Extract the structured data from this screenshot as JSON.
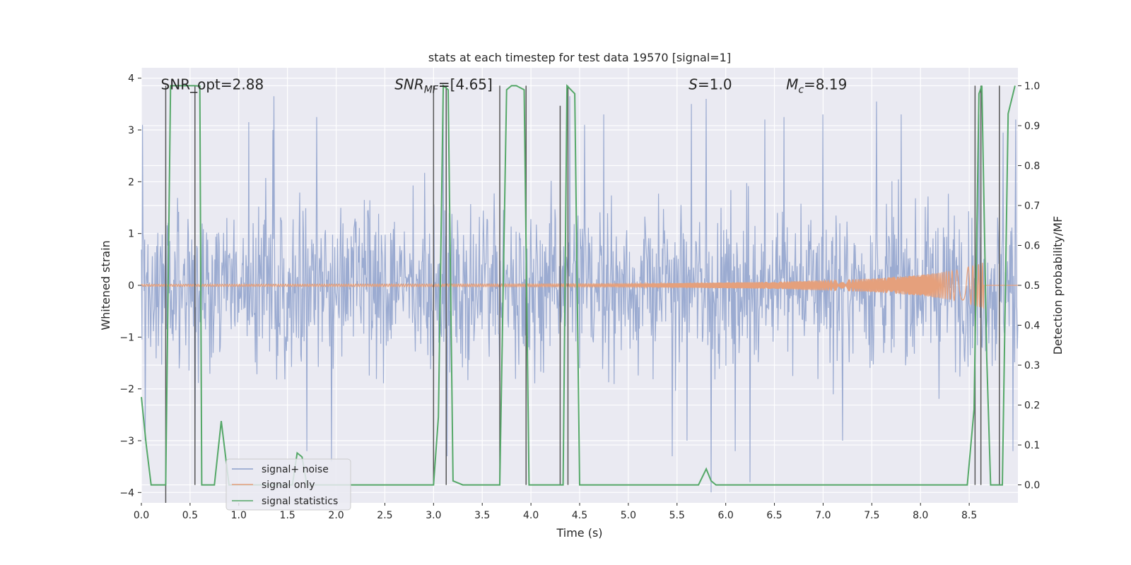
{
  "chart_data": {
    "type": "line",
    "title": "stats at each timestep for test data 19570 [signal=1]",
    "xlabel": "Time (s)",
    "ylabel": "Whitened strain",
    "y2label": "Detection probability/MF",
    "xlim": [
      0.0,
      9.0
    ],
    "ylim": [
      -4.2,
      4.2
    ],
    "y2lim": [
      -0.045,
      1.045
    ],
    "xticks": [
      "0.0",
      "0.5",
      "1.0",
      "1.5",
      "2.0",
      "2.5",
      "3.0",
      "3.5",
      "4.0",
      "4.5",
      "5.0",
      "5.5",
      "6.0",
      "6.5",
      "7.0",
      "7.5",
      "8.0",
      "8.5"
    ],
    "yticks": [
      "−4",
      "−3",
      "−2",
      "−1",
      "0",
      "1",
      "2",
      "3",
      "4"
    ],
    "y2ticks": [
      "0.0",
      "0.1",
      "0.2",
      "0.3",
      "0.4",
      "0.5",
      "0.6",
      "0.7",
      "0.8",
      "0.9",
      "1.0"
    ],
    "grid": true,
    "legend_position": "lower-left",
    "annotations": [
      {
        "id": "snr-opt",
        "text": "SNR_opt=2.88",
        "x": 0.2,
        "y": 3.88
      },
      {
        "id": "snr-mf",
        "label": "SNR",
        "sub": "MF",
        "rest": "=[4.65]",
        "x": 2.6,
        "y": 3.88
      },
      {
        "id": "s-val",
        "label": "S",
        "rest": "=1.0",
        "x": 5.62,
        "y": 3.88
      },
      {
        "id": "mc-val",
        "label": "M",
        "sub": "c",
        "rest": "=8.19",
        "x": 6.62,
        "y": 3.88
      }
    ],
    "series": [
      {
        "name": "signal+ noise",
        "color": "#8da0cb",
        "kind": "noise",
        "envelope_typical": [
          -2.2,
          2.5
        ],
        "spikes": [
          {
            "x": 0.01,
            "y": 3.1
          },
          {
            "x": 0.04,
            "y": -3.0
          },
          {
            "x": 0.55,
            "y": -3.3
          },
          {
            "x": 1.1,
            "y": 3.15
          },
          {
            "x": 1.35,
            "y": 3.0
          },
          {
            "x": 1.36,
            "y": -2.9
          },
          {
            "x": 1.36,
            "y": 3.65
          },
          {
            "x": 1.7,
            "y": -3.2
          },
          {
            "x": 1.8,
            "y": 3.25
          },
          {
            "x": 1.95,
            "y": -3.4
          },
          {
            "x": 3.1,
            "y": 3.55
          },
          {
            "x": 3.14,
            "y": -3.3
          },
          {
            "x": 4.4,
            "y": 3.65
          },
          {
            "x": 4.55,
            "y": 3.1
          },
          {
            "x": 4.75,
            "y": 3.3
          },
          {
            "x": 5.45,
            "y": -3.3
          },
          {
            "x": 5.6,
            "y": -3.0
          },
          {
            "x": 5.65,
            "y": 3.5
          },
          {
            "x": 5.8,
            "y": 3.6
          },
          {
            "x": 5.85,
            "y": -4.0
          },
          {
            "x": 6.1,
            "y": -3.2
          },
          {
            "x": 6.25,
            "y": -3.8
          },
          {
            "x": 6.4,
            "y": 3.2
          },
          {
            "x": 6.6,
            "y": 3.25
          },
          {
            "x": 7.0,
            "y": 3.3
          },
          {
            "x": 7.2,
            "y": -3.0
          },
          {
            "x": 7.55,
            "y": 3.55
          },
          {
            "x": 7.8,
            "y": 3.3
          },
          {
            "x": 8.6,
            "y": 3.3
          },
          {
            "x": 8.85,
            "y": 2.95
          },
          {
            "x": 8.95,
            "y": -3.2
          },
          {
            "x": 8.98,
            "y": 3.2
          }
        ]
      },
      {
        "name": "signal only",
        "color": "#e5a07c",
        "kind": "chirp",
        "amplitude": {
          "x": [
            0.0,
            5.0,
            6.5,
            7.5,
            8.0,
            8.4,
            8.65
          ],
          "y": [
            0.02,
            0.03,
            0.07,
            0.13,
            0.2,
            0.3,
            0.45
          ]
        }
      },
      {
        "name": "signal statistics",
        "color": "#55a868",
        "kind": "line",
        "axis": "right",
        "x": [
          0.0,
          0.05,
          0.1,
          0.15,
          0.25,
          0.3,
          0.35,
          0.4,
          0.45,
          0.5,
          0.55,
          0.6,
          0.62,
          0.7,
          0.75,
          0.82,
          0.9,
          0.95,
          1.5,
          1.55,
          1.6,
          1.65,
          1.7,
          2.95,
          3.0,
          3.05,
          3.1,
          3.15,
          3.2,
          3.3,
          3.6,
          3.68,
          3.75,
          3.8,
          3.85,
          3.93,
          3.98,
          4.05,
          4.28,
          4.33,
          4.37,
          4.45,
          4.5,
          4.6,
          5.68,
          5.72,
          5.78,
          5.8,
          5.85,
          5.9,
          6.0,
          8.48,
          8.55,
          8.6,
          8.63,
          8.68,
          8.72,
          8.78,
          8.84,
          8.9,
          8.97
        ],
        "y": [
          0.22,
          0.1,
          0.0,
          0.0,
          0.0,
          1.0,
          1.0,
          1.0,
          1.0,
          1.0,
          1.0,
          0.999,
          0.0,
          0.0,
          0.0,
          0.16,
          0.0,
          0.0,
          0.0,
          0.0,
          0.08,
          0.07,
          0.0,
          0.0,
          0.0,
          0.17,
          1.0,
          0.99,
          0.01,
          0.0,
          0.0,
          0.0,
          0.99,
          1.0,
          1.0,
          0.99,
          0.0,
          0.0,
          0.0,
          0.0,
          1.0,
          0.98,
          0.0,
          0.0,
          0.0,
          0.0,
          0.03,
          0.04,
          0.01,
          0.0,
          0.0,
          0.0,
          0.19,
          0.98,
          1.0,
          0.32,
          0.0,
          0.0,
          0.0,
          0.93,
          1.0
        ]
      }
    ],
    "vlines": [
      {
        "x": 0.25,
        "y0": -0.045,
        "y1": 1.0
      },
      {
        "x": 0.55,
        "y0": 0.0,
        "y1": 1.0
      },
      {
        "x": 3.0,
        "y0": 0.0,
        "y1": 1.0
      },
      {
        "x": 3.13,
        "y0": 0.0,
        "y1": 1.0
      },
      {
        "x": 3.68,
        "y0": 0.0,
        "y1": 1.0
      },
      {
        "x": 3.95,
        "y0": 0.0,
        "y1": 1.0
      },
      {
        "x": 4.3,
        "y0": 0.0,
        "y1": 0.95
      },
      {
        "x": 4.38,
        "y0": 0.0,
        "y1": 1.0
      },
      {
        "x": 8.56,
        "y0": 0.0,
        "y1": 1.0
      },
      {
        "x": 8.62,
        "y0": 0.0,
        "y1": 1.0
      },
      {
        "x": 8.81,
        "y0": 0.0,
        "y1": 1.0
      }
    ]
  }
}
